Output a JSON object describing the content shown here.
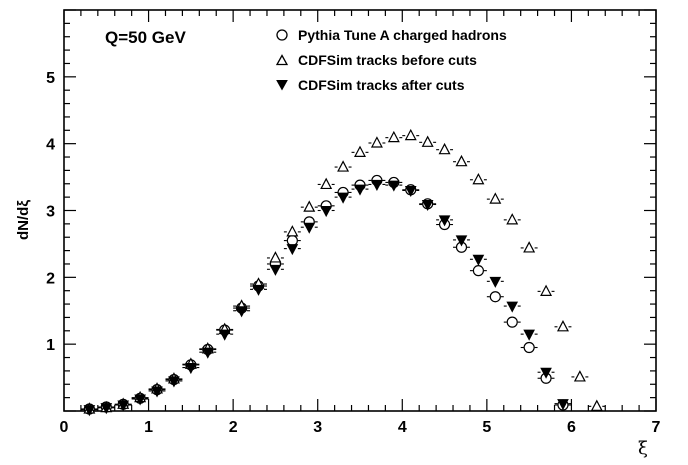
{
  "chart_data": {
    "type": "scatter",
    "title": "",
    "annotation": "Q=50 GeV",
    "xlabel": "ξ",
    "ylabel": "dN/dξ",
    "xlim": [
      0,
      7
    ],
    "ylim": [
      0,
      6
    ],
    "x_ticks": [
      "0",
      "1",
      "2",
      "3",
      "4",
      "5",
      "6",
      "7"
    ],
    "y_ticks": [
      "1",
      "2",
      "3",
      "4",
      "5"
    ],
    "legend_position": "top-right",
    "grid": false,
    "x_bin_halfwidth": 0.1,
    "series": [
      {
        "name": "Pythia Tune A charged hadrons",
        "marker": "open-circle",
        "x": [
          0.3,
          0.5,
          0.7,
          0.9,
          1.1,
          1.3,
          1.5,
          1.7,
          1.9,
          2.1,
          2.3,
          2.5,
          2.7,
          2.9,
          3.1,
          3.3,
          3.5,
          3.7,
          3.9,
          4.1,
          4.3,
          4.5,
          4.7,
          4.9,
          5.1,
          5.3,
          5.5,
          5.7,
          5.9
        ],
        "values": [
          0.03,
          0.06,
          0.1,
          0.19,
          0.32,
          0.47,
          0.69,
          0.92,
          1.21,
          1.54,
          1.87,
          2.2,
          2.55,
          2.83,
          3.07,
          3.27,
          3.38,
          3.45,
          3.42,
          3.31,
          3.1,
          2.79,
          2.45,
          2.1,
          1.71,
          1.33,
          0.95,
          0.49,
          0.09
        ]
      },
      {
        "name": "CDFSim tracks before cuts",
        "marker": "open-triangle-up",
        "x": [
          0.3,
          0.5,
          0.7,
          0.9,
          1.1,
          1.3,
          1.5,
          1.7,
          1.9,
          2.1,
          2.3,
          2.5,
          2.7,
          2.9,
          3.1,
          3.3,
          3.5,
          3.7,
          3.9,
          4.1,
          4.3,
          4.5,
          4.7,
          4.9,
          5.1,
          5.3,
          5.5,
          5.7,
          5.9,
          6.1,
          6.3
        ],
        "values": [
          0.03,
          0.05,
          0.1,
          0.2,
          0.33,
          0.48,
          0.7,
          0.93,
          1.22,
          1.57,
          1.9,
          2.29,
          2.68,
          3.05,
          3.39,
          3.65,
          3.87,
          4.01,
          4.09,
          4.12,
          4.02,
          3.91,
          3.73,
          3.46,
          3.17,
          2.86,
          2.44,
          1.79,
          1.26,
          0.51,
          0.07
        ]
      },
      {
        "name": "CDFSim tracks after cuts",
        "marker": "filled-triangle-down",
        "x": [
          0.3,
          0.5,
          0.7,
          0.9,
          1.1,
          1.3,
          1.5,
          1.7,
          1.9,
          2.1,
          2.3,
          2.5,
          2.7,
          2.9,
          3.1,
          3.3,
          3.5,
          3.7,
          3.9,
          4.1,
          4.3,
          4.5,
          4.7,
          4.9,
          5.1,
          5.3,
          5.5,
          5.7,
          5.9
        ],
        "values": [
          0.02,
          0.05,
          0.09,
          0.18,
          0.3,
          0.45,
          0.65,
          0.88,
          1.15,
          1.5,
          1.82,
          2.12,
          2.43,
          2.75,
          3.0,
          3.2,
          3.32,
          3.39,
          3.38,
          3.3,
          3.09,
          2.86,
          2.56,
          2.27,
          1.94,
          1.57,
          1.15,
          0.58,
          0.11
        ]
      }
    ]
  }
}
